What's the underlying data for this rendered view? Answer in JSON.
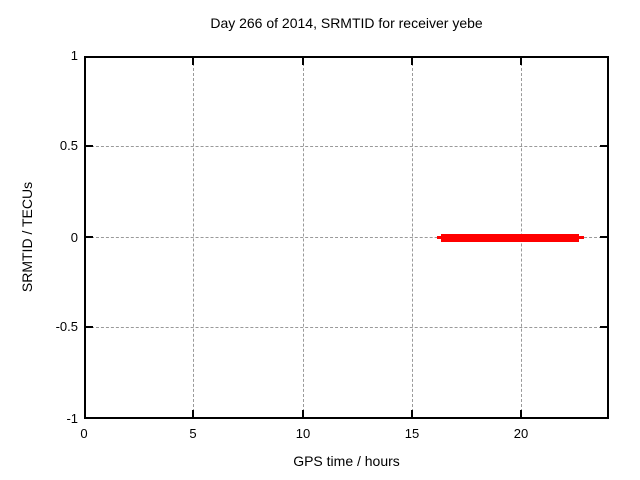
{
  "chart_data": {
    "type": "line",
    "title": "Day 266 of 2014, SRMTID for receiver yebe",
    "xlabel": "GPS time / hours",
    "ylabel": "SRMTID / TECUs",
    "xlim": [
      0,
      24
    ],
    "ylim": [
      -1,
      1
    ],
    "xticks": [
      0,
      5,
      10,
      15,
      20
    ],
    "yticks": [
      1,
      0.5,
      0,
      -0.5,
      -1
    ],
    "xtick_labels": [
      "0",
      "5",
      "10",
      "15",
      "20"
    ],
    "ytick_labels": [
      "1",
      "0.5",
      "0",
      "-0.5",
      "-1"
    ],
    "grid": true,
    "grid_style": "dashed",
    "tick_style": "inward, mirrored on top and right borders",
    "legend_position": "none",
    "series": [
      {
        "name": "SRMTID",
        "color": "#ff0000",
        "style": "thick horizontal segment at constant value",
        "y": 0,
        "x_start": 16.2,
        "x_end": 22.9,
        "thick_core_x_start": 16.3,
        "thick_core_x_end": 22.6,
        "points": [
          [
            16.2,
            0
          ],
          [
            22.9,
            0
          ]
        ]
      }
    ]
  },
  "colors": {
    "background": "#ffffff",
    "axis_border": "#000000",
    "grid": "#9a9a9a",
    "series_red": "#ff0000",
    "text": "#000000"
  }
}
